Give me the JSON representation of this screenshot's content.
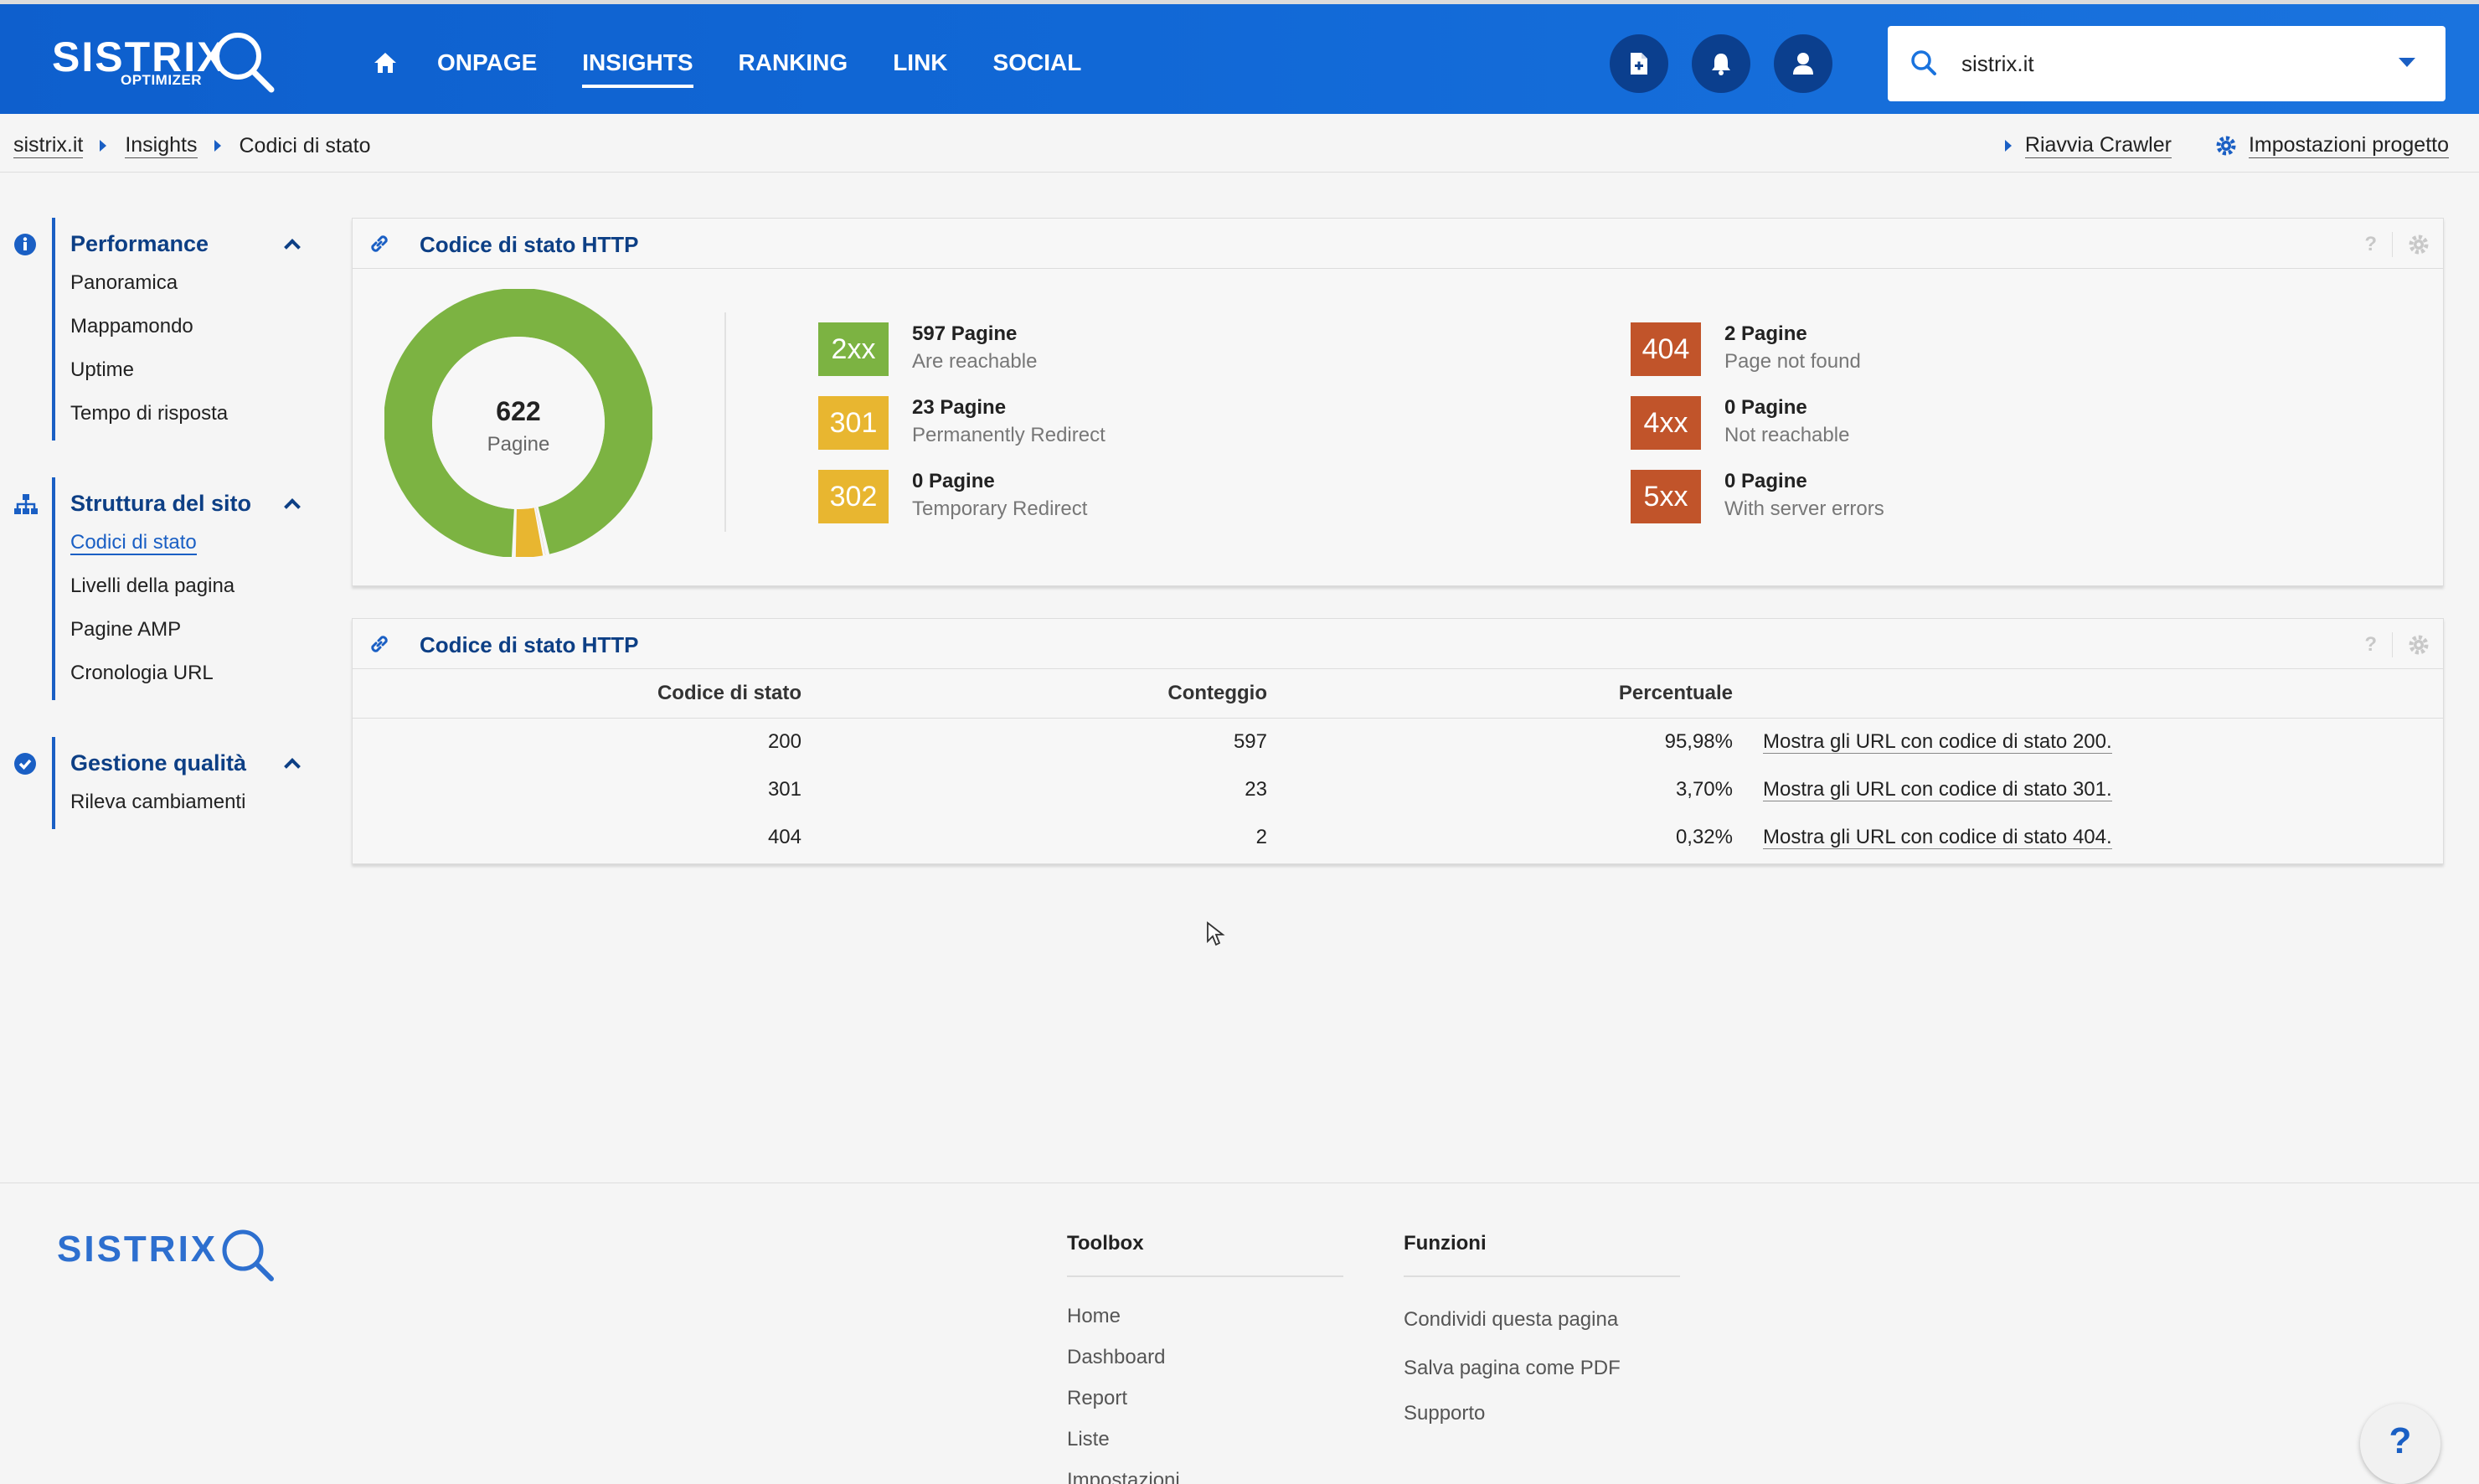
{
  "header": {
    "logo_word": "SISTRIX",
    "logo_sub": "OPTIMIZER",
    "nav": [
      {
        "label": "ONPAGE",
        "active": false
      },
      {
        "label": "INSIGHTS",
        "active": true
      },
      {
        "label": "RANKING",
        "active": false
      },
      {
        "label": "LINK",
        "active": false
      },
      {
        "label": "SOCIAL",
        "active": false
      }
    ],
    "icons": [
      "pdf-file-icon",
      "bell-icon",
      "user-icon"
    ],
    "search_value": "sistrix.it"
  },
  "breadcrumb": {
    "items": [
      "sistrix.it",
      "Insights"
    ],
    "current": "Codici di stato",
    "actions": {
      "restart": "Riavvia Crawler",
      "settings": "Impostazioni progetto"
    }
  },
  "sidebar": {
    "groups": [
      {
        "title": "Performance",
        "icon": "info-icon",
        "items": [
          "Panoramica",
          "Mappamondo",
          "Uptime",
          "Tempo di risposta"
        ]
      },
      {
        "title": "Struttura del sito",
        "icon": "sitemap-icon",
        "items": [
          "Codici di stato",
          "Livelli della pagina",
          "Pagine AMP",
          "Cronologia URL"
        ],
        "active": 0
      },
      {
        "title": "Gestione qualità",
        "icon": "check-circle-icon",
        "items": [
          "Rileva cambiamenti"
        ]
      }
    ]
  },
  "overview": {
    "title": "Codice di stato HTTP",
    "help": "?",
    "total": "622",
    "total_label": "Pagine",
    "stats": [
      {
        "code": "2xx",
        "count": "597 Pagine",
        "desc": "Are reachable",
        "color": "#7cb342"
      },
      {
        "code": "301",
        "count": "23 Pagine",
        "desc": "Permanently Redirect",
        "color": "#e8b630"
      },
      {
        "code": "302",
        "count": "0 Pagine",
        "desc": "Temporary Redirect",
        "color": "#e8b630"
      },
      {
        "code": "404",
        "count": "2 Pagine",
        "desc": "Page not found",
        "color": "#c1542a"
      },
      {
        "code": "4xx",
        "count": "0 Pagine",
        "desc": "Not reachable",
        "color": "#c1542a"
      },
      {
        "code": "5xx",
        "count": "0 Pagine",
        "desc": "With server errors",
        "color": "#c1542a"
      }
    ],
    "donut": [
      {
        "label": "2xx",
        "value": 597,
        "color": "#7cb342"
      },
      {
        "label": "404",
        "value": 2,
        "color": "#c1542a"
      },
      {
        "label": "301",
        "value": 23,
        "color": "#e8b630"
      }
    ]
  },
  "table": {
    "title": "Codice di stato HTTP",
    "help": "?",
    "headers": [
      "Codice di stato",
      "Conteggio",
      "Percentuale"
    ],
    "rows": [
      {
        "code": "200",
        "count": "597",
        "pct": "95,98%",
        "link": "Mostra gli URL con codice di stato 200."
      },
      {
        "code": "301",
        "count": "23",
        "pct": "3,70%",
        "link": "Mostra gli URL con codice di stato 301."
      },
      {
        "code": "404",
        "count": "2",
        "pct": "0,32%",
        "link": "Mostra gli URL con codice di stato 404."
      }
    ]
  },
  "footer": {
    "logo_word": "SISTRIX",
    "toolbox": {
      "title": "Toolbox",
      "items": [
        "Home",
        "Dashboard",
        "Report",
        "Liste",
        "Impostazioni"
      ]
    },
    "funzioni": {
      "title": "Funzioni",
      "items": [
        "Condividi questa pagina",
        "Salva pagina come PDF",
        "Supporto"
      ]
    },
    "help": "?"
  }
}
